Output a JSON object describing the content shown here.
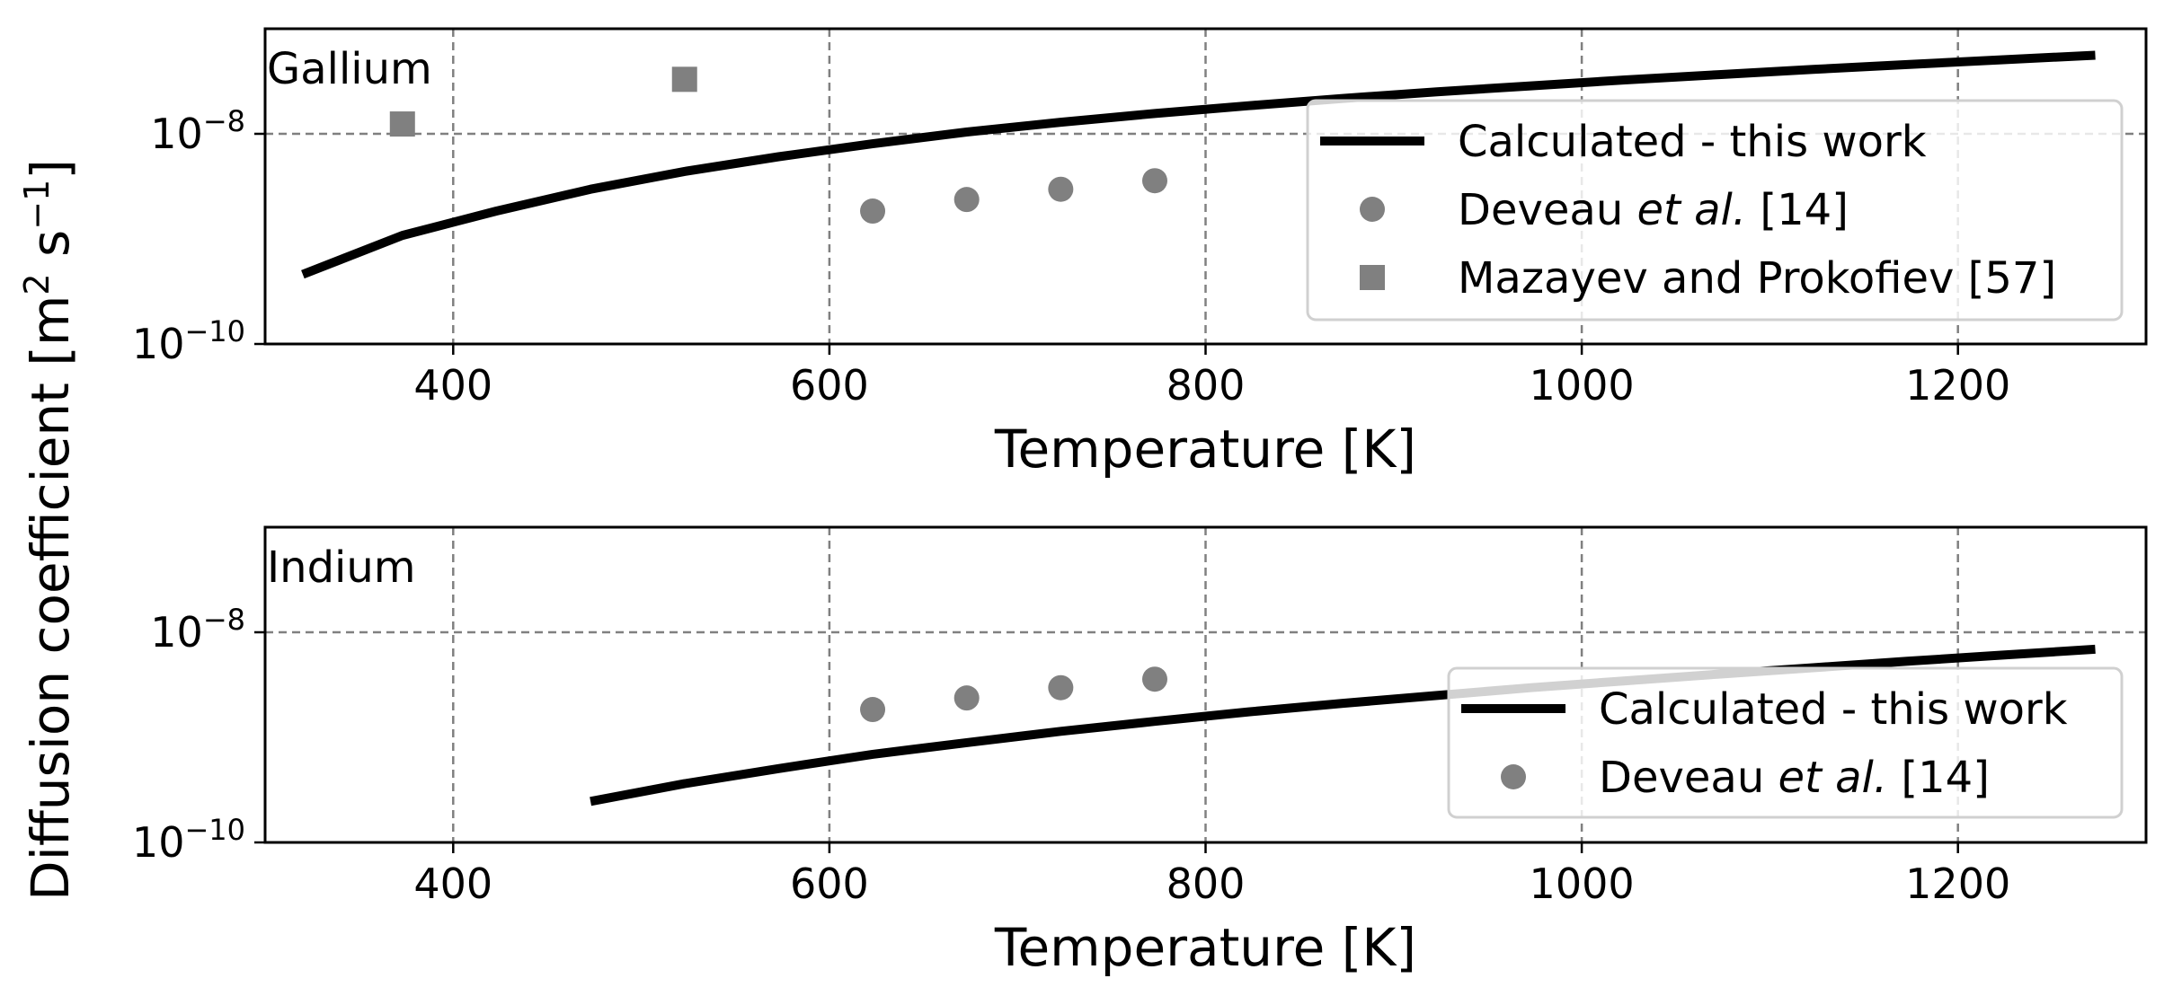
{
  "chart_data": {
    "type": "line",
    "shared_ylabel": {
      "main": "Diffusion coefficient",
      "unit_open": "[m",
      "unit_sq": "2",
      "unit_mid": " s",
      "unit_neg": "−1",
      "unit_close": "]"
    },
    "panels": [
      {
        "label": "Gallium",
        "xlabel": "Temperature [K]",
        "yscale": "log",
        "xlim": [
          300,
          1300
        ],
        "ylim": [
          1e-10,
          1e-07
        ],
        "grid": true,
        "xticks": [
          {
            "value": 400,
            "label": "400"
          },
          {
            "value": 600,
            "label": "600"
          },
          {
            "value": 800,
            "label": "800"
          },
          {
            "value": 1000,
            "label": "1000"
          },
          {
            "value": 1200,
            "label": "1200"
          }
        ],
        "yticks": [
          {
            "value": 1e-10,
            "base": "10",
            "exp": "−10"
          },
          {
            "value": 1e-08,
            "base": "10",
            "exp": "−8"
          }
        ],
        "series": [
          {
            "name": "Calculated - this work",
            "kind": "line",
            "color": "#000000",
            "x": [
              320,
              373,
              423,
              473,
              523,
              573,
              623,
              673,
              723,
              773,
              823,
              873,
              923,
              973,
              1023,
              1073,
              1123,
              1173,
              1223,
              1273
            ],
            "y": [
              4.6e-10,
              1.08e-09,
              1.84e-09,
              2.97e-09,
              4.38e-09,
              6.06e-09,
              8.03e-09,
              1.04e-08,
              1.29e-08,
              1.56e-08,
              1.85e-08,
              2.17e-08,
              2.51e-08,
              2.86e-08,
              3.26e-08,
              3.66e-08,
              4.1e-08,
              4.56e-08,
              5.06e-08,
              5.6e-08
            ]
          },
          {
            "name": "Deveau",
            "name_em": "et al.",
            "name_ref": "[14]",
            "kind": "circle",
            "color": "#808080",
            "x": [
              623,
              673,
              723,
              773
            ],
            "y": [
              1.84e-09,
              2.37e-09,
              2.97e-09,
              3.58e-09
            ]
          },
          {
            "name": "Mazayev and Prokofiev [57]",
            "kind": "square",
            "color": "#808080",
            "x": [
              373,
              523
            ],
            "y": [
              1.24e-08,
              3.3e-08
            ]
          }
        ],
        "legend_loc": "lower-right"
      },
      {
        "label": "Indium",
        "xlabel": "Temperature [K]",
        "yscale": "log",
        "xlim": [
          300,
          1300
        ],
        "ylim": [
          1e-10,
          1e-07
        ],
        "grid": true,
        "xticks": [
          {
            "value": 400,
            "label": "400"
          },
          {
            "value": 600,
            "label": "600"
          },
          {
            "value": 800,
            "label": "800"
          },
          {
            "value": 1000,
            "label": "1000"
          },
          {
            "value": 1200,
            "label": "1200"
          }
        ],
        "yticks": [
          {
            "value": 1e-10,
            "base": "10",
            "exp": "−10"
          },
          {
            "value": 1e-08,
            "base": "10",
            "exp": "−8"
          }
        ],
        "series": [
          {
            "name": "Calculated - this work",
            "kind": "line",
            "color": "#000000",
            "x": [
              473,
              523,
              573,
              623,
              673,
              723,
              773,
              823,
              873,
              923,
              973,
              1023,
              1073,
              1123,
              1173,
              1223,
              1273
            ],
            "y": [
              2.46e-10,
              3.62e-10,
              5.04e-10,
              6.9e-10,
              8.9e-10,
              1.14e-09,
              1.42e-09,
              1.75e-09,
              2.11e-09,
              2.5e-09,
              2.97e-09,
              3.45e-09,
              4e-09,
              4.6e-09,
              5.3e-09,
              6.06e-09,
              6.9e-09
            ]
          },
          {
            "name": "Deveau",
            "name_em": "et al.",
            "name_ref": "[14]",
            "kind": "circle",
            "color": "#808080",
            "x": [
              623,
              673,
              723,
              773
            ],
            "y": [
              1.84e-09,
              2.37e-09,
              2.97e-09,
              3.58e-09
            ]
          }
        ],
        "legend_loc": "lower-right"
      }
    ]
  }
}
